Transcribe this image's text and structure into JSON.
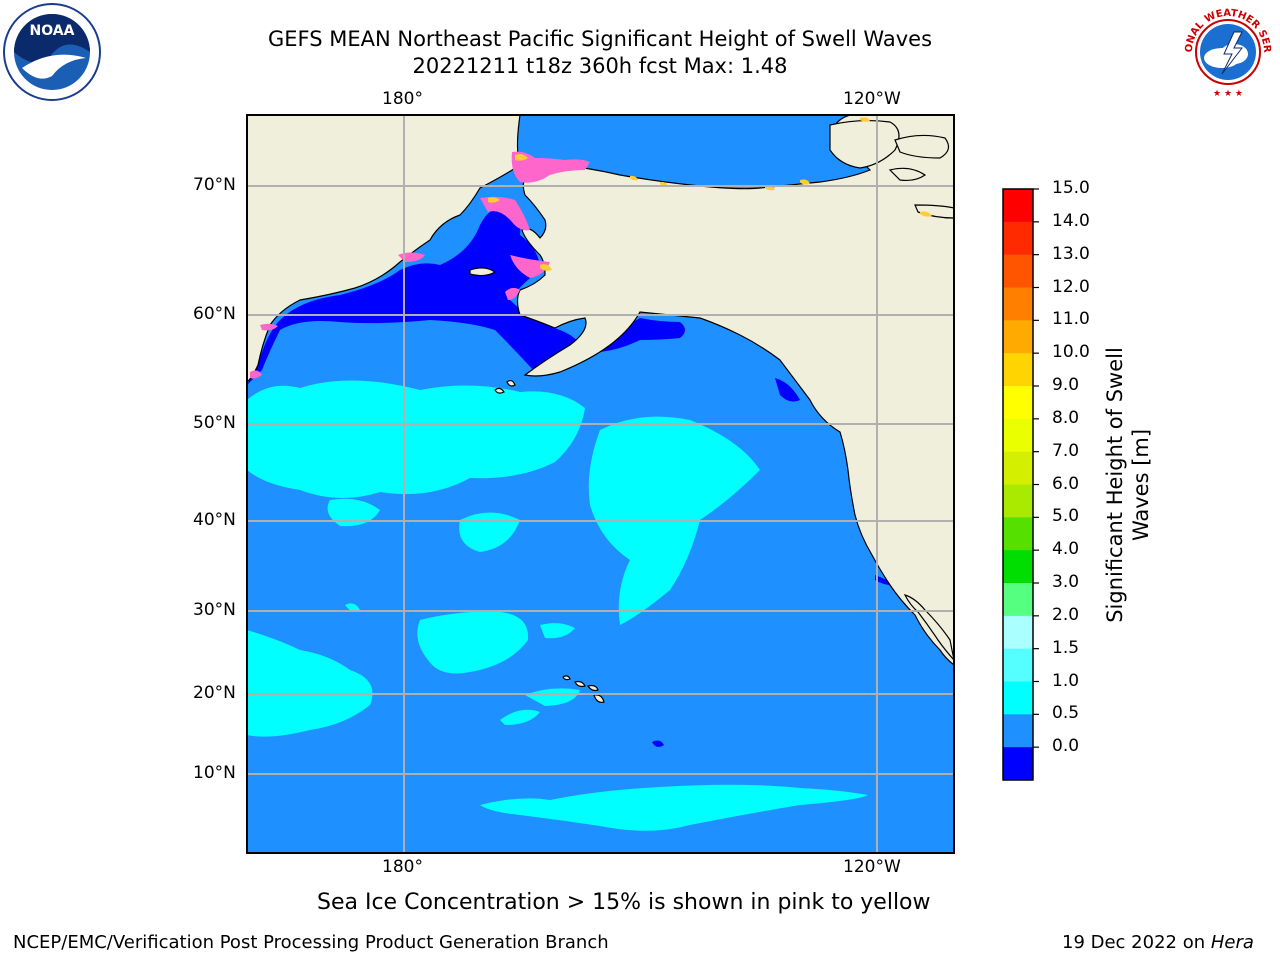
{
  "title": {
    "line1": "GEFS MEAN Northeast Pacific Significant Height of Swell Waves",
    "line2": "20221211 t18z 360h fcst   Max: 1.48"
  },
  "axes": {
    "top_lon": [
      "180°",
      "120°W"
    ],
    "bottom_lon": [
      "180°",
      "120°W"
    ],
    "lat": [
      "70°N",
      "60°N",
      "50°N",
      "40°N",
      "30°N",
      "20°N",
      "10°N"
    ]
  },
  "colorbar": {
    "label_line1": "Significant Height of Swell",
    "label_line2": "Waves [m]",
    "ticks": [
      "15.0",
      "14.0",
      "13.0",
      "12.0",
      "11.0",
      "10.0",
      "9.0",
      "8.0",
      "7.0",
      "6.0",
      "5.0",
      "4.0",
      "3.0",
      "2.0",
      "1.5",
      "1.0",
      "0.5",
      "0.0"
    ],
    "colors_top_to_bottom": [
      "#ff0000",
      "#ff2a00",
      "#ff5500",
      "#ff7f00",
      "#ffaa00",
      "#ffd400",
      "#ffff00",
      "#eaff00",
      "#d4f000",
      "#aaea00",
      "#55e000",
      "#00dd00",
      "#55ff7f",
      "#aaffff",
      "#55ffff",
      "#00ffff",
      "#1e90ff",
      "#0000ff"
    ]
  },
  "map_colors": {
    "land": "#efefdb",
    "ocean_1_0": "#1e90ff",
    "ocean_1_5": "#00ffff",
    "ocean_0_5": "#0000ff",
    "ice": "#ff66cc",
    "grid": "#b0b0b0"
  },
  "caption": "Sea Ice Concentration > 15% is shown in pink to yellow",
  "footer": {
    "left": "NCEP/EMC/Verification Post Processing Product Generation Branch",
    "right_date": "19 Dec 2022 on ",
    "right_host": "Hera"
  },
  "logos": {
    "noaa_text": "NOAA",
    "nws_text": "NATIONAL WEATHER SERVICE"
  }
}
